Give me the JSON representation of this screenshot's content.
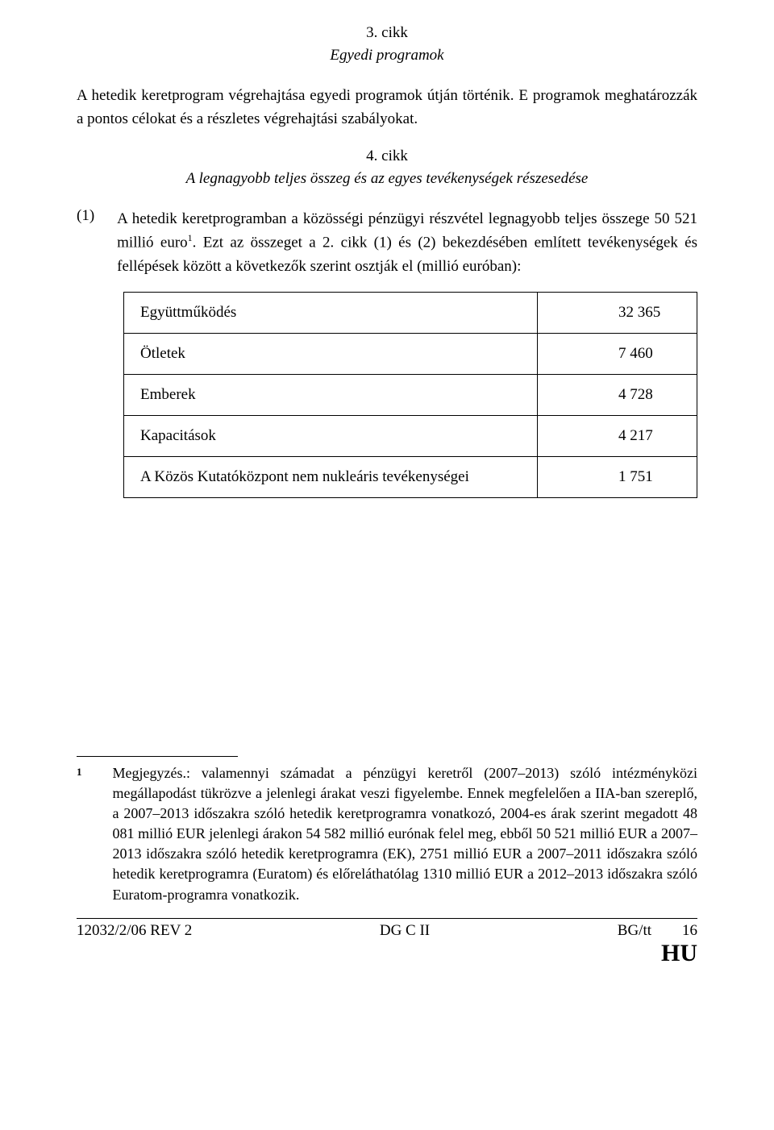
{
  "article3": {
    "num": "3. cikk",
    "title": "Egyedi programok",
    "para": "A hetedik keretprogram végrehajtása egyedi programok útján történik. E programok meghatározzák a pontos célokat és a részletes végrehajtási szabályokat."
  },
  "article4": {
    "num": "4. cikk",
    "title": "A legnagyobb teljes összeg és az egyes tevékenységek részesedése",
    "item1_num": "(1)",
    "item1_text_a": "A hetedik keretprogramban a közösségi pénzügyi részvétel legnagyobb teljes összege 50 521 millió euro",
    "item1_sup": "1",
    "item1_text_b": ". Ezt az összeget a 2. cikk (1) és (2) bekezdésében említett tevékenységek és fellépések között a következők szerint osztják el (millió euróban):"
  },
  "table": {
    "rows": [
      {
        "label": "Együttműködés",
        "value": "32 365"
      },
      {
        "label": "Ötletek",
        "value": "7 460"
      },
      {
        "label": "Emberek",
        "value": "4 728"
      },
      {
        "label": "Kapacitások",
        "value": "4 217"
      },
      {
        "label": "A Közös Kutatóközpont nem nukleáris tevékenységei",
        "value": "1 751"
      }
    ]
  },
  "footnote": {
    "num": "1",
    "text": "Megjegyzés.: valamennyi számadat a pénzügyi keretről (2007–2013) szóló intézményközi megállapodást tükrözve a jelenlegi árakat veszi figyelembe. Ennek megfelelően a IIA-ban szereplő, a 2007–2013 időszakra szóló hetedik keretprogramra vonatkozó, 2004-es árak szerint megadott 48 081 millió EUR jelenlegi árakon 54 582 millió eurónak felel meg, ebből 50 521 millió EUR a 2007–2013 időszakra szóló hetedik keretprogramra (EK), 2751 millió EUR a 2007–2011 időszakra szóló hetedik keretprogramra (Euratom) és előreláthatólag 1310 millió EUR a 2012–2013 időszakra szóló Euratom-programra vonatkozik."
  },
  "footer": {
    "doc_ref": "12032/2/06 REV 2",
    "center": "DG C II",
    "author": "BG/tt",
    "page_num": "16",
    "lang": "HU"
  }
}
